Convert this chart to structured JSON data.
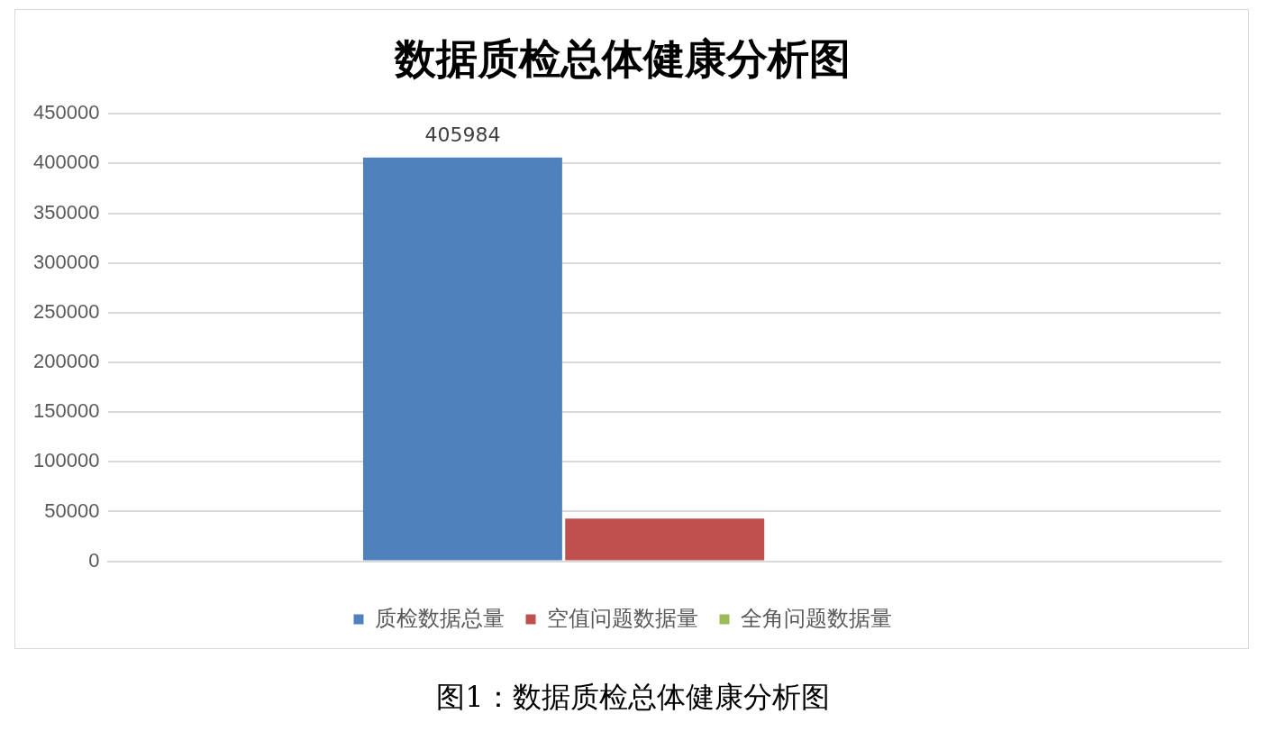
{
  "chart_data": {
    "type": "bar",
    "title": "数据质检总体健康分析图",
    "categories": [
      null
    ],
    "series": [
      {
        "name": "质检数据总量",
        "color": "#4f81bd",
        "values": [
          405984
        ],
        "value_labels": [
          "405984"
        ]
      },
      {
        "name": "空值问题数据量",
        "color": "#c0504d",
        "values": [
          43000
        ],
        "value_labels": [
          null
        ]
      },
      {
        "name": "全角问题数据量",
        "color": "#9bbb59",
        "values": [
          0
        ],
        "value_labels": [
          null
        ]
      }
    ],
    "ylim": [
      0,
      450000
    ],
    "yticks": [
      0,
      50000,
      100000,
      150000,
      200000,
      250000,
      300000,
      350000,
      400000,
      450000
    ],
    "grid": "y",
    "legend": "bottom",
    "annotations": [
      "图1：数据质检总体健康分析图"
    ]
  }
}
